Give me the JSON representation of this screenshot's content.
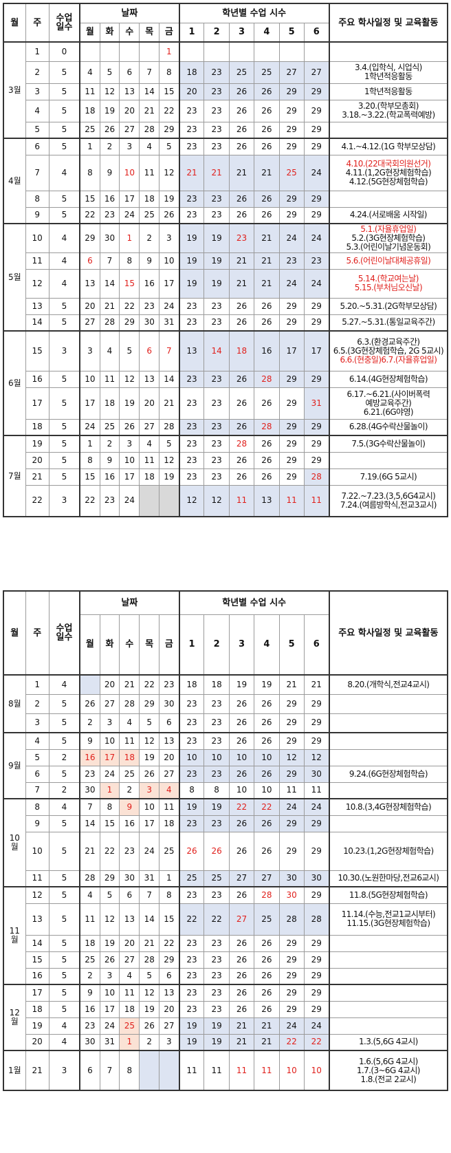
{
  "header": {
    "month": "월",
    "week": "주",
    "days_count": "수업\n일수",
    "dates": "날짜",
    "weekdays": [
      "월",
      "화",
      "수",
      "목",
      "금"
    ],
    "hours": "학년별 수업 시수",
    "grades": [
      "1",
      "2",
      "3",
      "4",
      "5",
      "6"
    ],
    "events": "주요 학사일정 및 교육활동"
  },
  "sem1": [
    {
      "label": "3월",
      "rows": [
        {
          "w": "1",
          "d": "0",
          "dates": [
            "",
            "",
            "",
            "",
            "1"
          ],
          "h": [
            "",
            "",
            "",
            "",
            "",
            ""
          ],
          "ev": []
        },
        {
          "w": "2",
          "d": "5",
          "dates": [
            "4",
            "5",
            "6",
            "7",
            "8"
          ],
          "h": [
            "18",
            "23",
            "25",
            "25",
            "27",
            "27"
          ],
          "ev": [
            "3.4.(입학식, 시업식)",
            "1학년적응활동"
          ]
        },
        {
          "w": "3",
          "d": "5",
          "dates": [
            "11",
            "12",
            "13",
            "14",
            "15"
          ],
          "h": [
            "20",
            "23",
            "26",
            "26",
            "29",
            "29"
          ],
          "ev": [
            "1학년적응활동"
          ]
        },
        {
          "w": "4",
          "d": "5",
          "dates": [
            "18",
            "19",
            "20",
            "21",
            "22"
          ],
          "h": [
            "23",
            "23",
            "26",
            "26",
            "29",
            "29"
          ],
          "ev": [
            "3.20.(학부모총회)",
            "3.18.~3.22.(학교폭력예방)"
          ]
        },
        {
          "w": "5",
          "d": "5",
          "dates": [
            "25",
            "26",
            "27",
            "28",
            "29"
          ],
          "h": [
            "23",
            "23",
            "26",
            "26",
            "29",
            "29"
          ],
          "ev": []
        }
      ]
    },
    {
      "label": "4월",
      "rows": [
        {
          "w": "6",
          "d": "5",
          "dates": [
            "1",
            "2",
            "3",
            "4",
            "5"
          ],
          "h": [
            "23",
            "23",
            "26",
            "26",
            "29",
            "29"
          ],
          "ev": [
            "4.1.~4.12.(1G 학부모상담)"
          ]
        },
        {
          "w": "7",
          "d": "4",
          "dates": [
            "8",
            "9",
            "10",
            "11",
            "12"
          ],
          "h": [
            "21",
            "21",
            "21",
            "21",
            "25",
            "24"
          ],
          "ev": [
            "4.10.(22대국회의원선거)",
            "4.11.(1,2G현장체험학습)",
            "4.12.(5G현장체험학습)"
          ]
        },
        {
          "w": "8",
          "d": "5",
          "dates": [
            "15",
            "16",
            "17",
            "18",
            "19"
          ],
          "h": [
            "23",
            "23",
            "26",
            "26",
            "29",
            "29"
          ],
          "ev": []
        },
        {
          "w": "9",
          "d": "5",
          "dates": [
            "22",
            "23",
            "24",
            "25",
            "26"
          ],
          "h": [
            "23",
            "23",
            "26",
            "26",
            "29",
            "29"
          ],
          "ev": [
            "4.24.(서로배움 시작일)"
          ]
        }
      ]
    },
    {
      "label": "5월",
      "rows": [
        {
          "w": "10",
          "d": "4",
          "dates": [
            "29",
            "30",
            "1",
            "2",
            "3"
          ],
          "h": [
            "19",
            "19",
            "23",
            "21",
            "24",
            "24"
          ],
          "ev": [
            "5.1.(자율휴업일)",
            "5.2.(3G현장체험학습)",
            "5.3.(어린이날기념운동회)"
          ]
        },
        {
          "w": "11",
          "d": "4",
          "dates": [
            "6",
            "7",
            "8",
            "9",
            "10"
          ],
          "h": [
            "19",
            "19",
            "21",
            "21",
            "23",
            "23"
          ],
          "ev": [
            "5.6.(어린이날대체공휴일)"
          ]
        },
        {
          "w": "12",
          "d": "4",
          "dates": [
            "13",
            "14",
            "15",
            "16",
            "17"
          ],
          "h": [
            "19",
            "19",
            "21",
            "21",
            "24",
            "24"
          ],
          "ev": [
            "5.14.(학교여는날)",
            "5.15.(부처님오신날)"
          ]
        },
        {
          "w": "13",
          "d": "5",
          "dates": [
            "20",
            "21",
            "22",
            "23",
            "24"
          ],
          "h": [
            "23",
            "23",
            "26",
            "26",
            "29",
            "29"
          ],
          "ev": [
            "5.20.~5.31.(2G학부모상담)"
          ]
        },
        {
          "w": "14",
          "d": "5",
          "dates": [
            "27",
            "28",
            "29",
            "30",
            "31"
          ],
          "h": [
            "23",
            "23",
            "26",
            "26",
            "29",
            "29"
          ],
          "ev": [
            "5.27.~5.31.(통일교육주간)"
          ]
        }
      ]
    },
    {
      "label": "6월",
      "rows": [
        {
          "w": "15",
          "d": "3",
          "dates": [
            "3",
            "4",
            "5",
            "6",
            "7"
          ],
          "h": [
            "13",
            "14",
            "18",
            "16",
            "17",
            "17"
          ],
          "ev": [
            "6.3.(환경교육주간)",
            "6.5.(3G현장체험학습, 2G 5교시)",
            "6.6.(현충일)6.7.(자율휴업일)"
          ]
        },
        {
          "w": "16",
          "d": "5",
          "dates": [
            "10",
            "11",
            "12",
            "13",
            "14"
          ],
          "h": [
            "23",
            "23",
            "26",
            "28",
            "29",
            "29"
          ],
          "ev": [
            "6.14.(4G현장체험학습)"
          ]
        },
        {
          "w": "17",
          "d": "5",
          "dates": [
            "17",
            "18",
            "19",
            "20",
            "21"
          ],
          "h": [
            "23",
            "23",
            "26",
            "26",
            "29",
            "31"
          ],
          "ev": [
            "6.17.~6.21.(사이버폭력",
            "예방교육주간)",
            "6.21.(6G야영)"
          ]
        },
        {
          "w": "18",
          "d": "5",
          "dates": [
            "24",
            "25",
            "26",
            "27",
            "28"
          ],
          "h": [
            "23",
            "23",
            "26",
            "28",
            "29",
            "29"
          ],
          "ev": [
            "6.28.(4G수락산물놀이)"
          ]
        }
      ]
    },
    {
      "label": "7월",
      "rows": [
        {
          "w": "19",
          "d": "5",
          "dates": [
            "1",
            "2",
            "3",
            "4",
            "5"
          ],
          "h": [
            "23",
            "23",
            "28",
            "26",
            "29",
            "29"
          ],
          "ev": [
            "7.5.(3G수락산물놀이)"
          ]
        },
        {
          "w": "20",
          "d": "5",
          "dates": [
            "8",
            "9",
            "10",
            "11",
            "12"
          ],
          "h": [
            "23",
            "23",
            "26",
            "26",
            "29",
            "29"
          ],
          "ev": []
        },
        {
          "w": "21",
          "d": "5",
          "dates": [
            "15",
            "16",
            "17",
            "18",
            "19"
          ],
          "h": [
            "23",
            "23",
            "26",
            "26",
            "29",
            "28"
          ],
          "ev": [
            "7.19.(6G 5교시)"
          ]
        },
        {
          "w": "22",
          "d": "3",
          "dates": [
            "22",
            "23",
            "24",
            "",
            ""
          ],
          "h": [
            "12",
            "12",
            "11",
            "13",
            "11",
            "11"
          ],
          "ev": [
            "7.22.~7.23.(3,5,6G4교시)",
            "7.24.(여름방학식,전교3교시)"
          ]
        }
      ]
    }
  ],
  "sem2": [
    {
      "label": "8월",
      "rows": [
        {
          "w": "1",
          "d": "4",
          "dates": [
            "",
            "20",
            "21",
            "22",
            "23"
          ],
          "h": [
            "18",
            "18",
            "19",
            "19",
            "21",
            "21"
          ],
          "ev": [
            "8.20.(개학식,전교4교시)"
          ]
        },
        {
          "w": "2",
          "d": "5",
          "dates": [
            "26",
            "27",
            "28",
            "29",
            "30"
          ],
          "h": [
            "23",
            "23",
            "26",
            "26",
            "29",
            "29"
          ],
          "ev": []
        },
        {
          "w": "3",
          "d": "5",
          "dates": [
            "2",
            "3",
            "4",
            "5",
            "6"
          ],
          "h": [
            "23",
            "23",
            "26",
            "26",
            "29",
            "29"
          ],
          "ev": []
        }
      ]
    },
    {
      "label": "9월",
      "rows": [
        {
          "w": "4",
          "d": "5",
          "dates": [
            "9",
            "10",
            "11",
            "12",
            "13"
          ],
          "h": [
            "23",
            "23",
            "26",
            "26",
            "29",
            "29"
          ],
          "ev": []
        },
        {
          "w": "5",
          "d": "2",
          "dates": [
            "16",
            "17",
            "18",
            "19",
            "20"
          ],
          "h": [
            "10",
            "10",
            "10",
            "10",
            "12",
            "12"
          ],
          "ev": []
        },
        {
          "w": "6",
          "d": "5",
          "dates": [
            "23",
            "24",
            "25",
            "26",
            "27"
          ],
          "h": [
            "23",
            "23",
            "26",
            "26",
            "29",
            "30"
          ],
          "ev": [
            "9.24.(6G현장체험학습)"
          ]
        },
        {
          "w": "7",
          "d": "2",
          "dates": [
            "30",
            "1",
            "2",
            "3",
            "4"
          ],
          "h": [
            "8",
            "8",
            "10",
            "10",
            "11",
            "11"
          ],
          "ev": []
        }
      ]
    },
    {
      "label": "10\n월",
      "rows": [
        {
          "w": "8",
          "d": "4",
          "dates": [
            "7",
            "8",
            "9",
            "10",
            "11"
          ],
          "h": [
            "19",
            "19",
            "22",
            "22",
            "24",
            "24"
          ],
          "ev": [
            "10.8.(3,4G현장체험학습)"
          ]
        },
        {
          "w": "9",
          "d": "5",
          "dates": [
            "14",
            "15",
            "16",
            "17",
            "18"
          ],
          "h": [
            "23",
            "23",
            "26",
            "26",
            "29",
            "29"
          ],
          "ev": []
        },
        {
          "w": "10",
          "d": "5",
          "dates": [
            "21",
            "22",
            "23",
            "24",
            "25"
          ],
          "h": [
            "26",
            "26",
            "26",
            "26",
            "29",
            "29"
          ],
          "ev": [
            "10.23.(1,2G현장체험학습)"
          ]
        },
        {
          "w": "11",
          "d": "5",
          "dates": [
            "28",
            "29",
            "30",
            "31",
            "1"
          ],
          "h": [
            "25",
            "25",
            "27",
            "27",
            "30",
            "30"
          ],
          "ev": [
            "10.30.(노원한마당,전교6교시)"
          ]
        }
      ]
    },
    {
      "label": "11\n월",
      "rows": [
        {
          "w": "12",
          "d": "5",
          "dates": [
            "4",
            "5",
            "6",
            "7",
            "8"
          ],
          "h": [
            "23",
            "23",
            "26",
            "28",
            "30",
            "29"
          ],
          "ev": [
            "11.8.(5G현장체험학습)"
          ]
        },
        {
          "w": "13",
          "d": "5",
          "dates": [
            "11",
            "12",
            "13",
            "14",
            "15"
          ],
          "h": [
            "22",
            "22",
            "27",
            "25",
            "28",
            "28"
          ],
          "ev": [
            "11.14.(수능,전교1교시부터)",
            "11.15.(3G현장체험학습)"
          ]
        },
        {
          "w": "14",
          "d": "5",
          "dates": [
            "18",
            "19",
            "20",
            "21",
            "22"
          ],
          "h": [
            "23",
            "23",
            "26",
            "26",
            "29",
            "29"
          ],
          "ev": []
        },
        {
          "w": "15",
          "d": "5",
          "dates": [
            "25",
            "26",
            "27",
            "28",
            "29"
          ],
          "h": [
            "23",
            "23",
            "26",
            "26",
            "29",
            "29"
          ],
          "ev": []
        },
        {
          "w": "16",
          "d": "5",
          "dates": [
            "2",
            "3",
            "4",
            "5",
            "6"
          ],
          "h": [
            "23",
            "23",
            "26",
            "26",
            "29",
            "29"
          ],
          "ev": []
        }
      ]
    },
    {
      "label": "12\n월",
      "rows": [
        {
          "w": "17",
          "d": "5",
          "dates": [
            "9",
            "10",
            "11",
            "12",
            "13"
          ],
          "h": [
            "23",
            "23",
            "26",
            "26",
            "29",
            "29"
          ],
          "ev": []
        },
        {
          "w": "18",
          "d": "5",
          "dates": [
            "16",
            "17",
            "18",
            "19",
            "20"
          ],
          "h": [
            "23",
            "23",
            "26",
            "26",
            "29",
            "29"
          ],
          "ev": []
        },
        {
          "w": "19",
          "d": "4",
          "dates": [
            "23",
            "24",
            "25",
            "26",
            "27"
          ],
          "h": [
            "19",
            "19",
            "21",
            "21",
            "24",
            "24"
          ],
          "ev": []
        },
        {
          "w": "20",
          "d": "4",
          "dates": [
            "30",
            "31",
            "1",
            "2",
            "3"
          ],
          "h": [
            "19",
            "19",
            "21",
            "21",
            "22",
            "22"
          ],
          "ev": [
            "1.3.(5,6G 4교시)"
          ]
        }
      ]
    },
    {
      "label": "1월",
      "rows": [
        {
          "w": "21",
          "d": "3",
          "dates": [
            "6",
            "7",
            "8",
            "",
            ""
          ],
          "h": [
            "11",
            "11",
            "11",
            "11",
            "10",
            "10"
          ],
          "ev": [
            "1.6.(5,6G 4교시)",
            "1.7.(3~6G 4교시)",
            "1.8.(전교 2교시)"
          ]
        }
      ]
    }
  ]
}
